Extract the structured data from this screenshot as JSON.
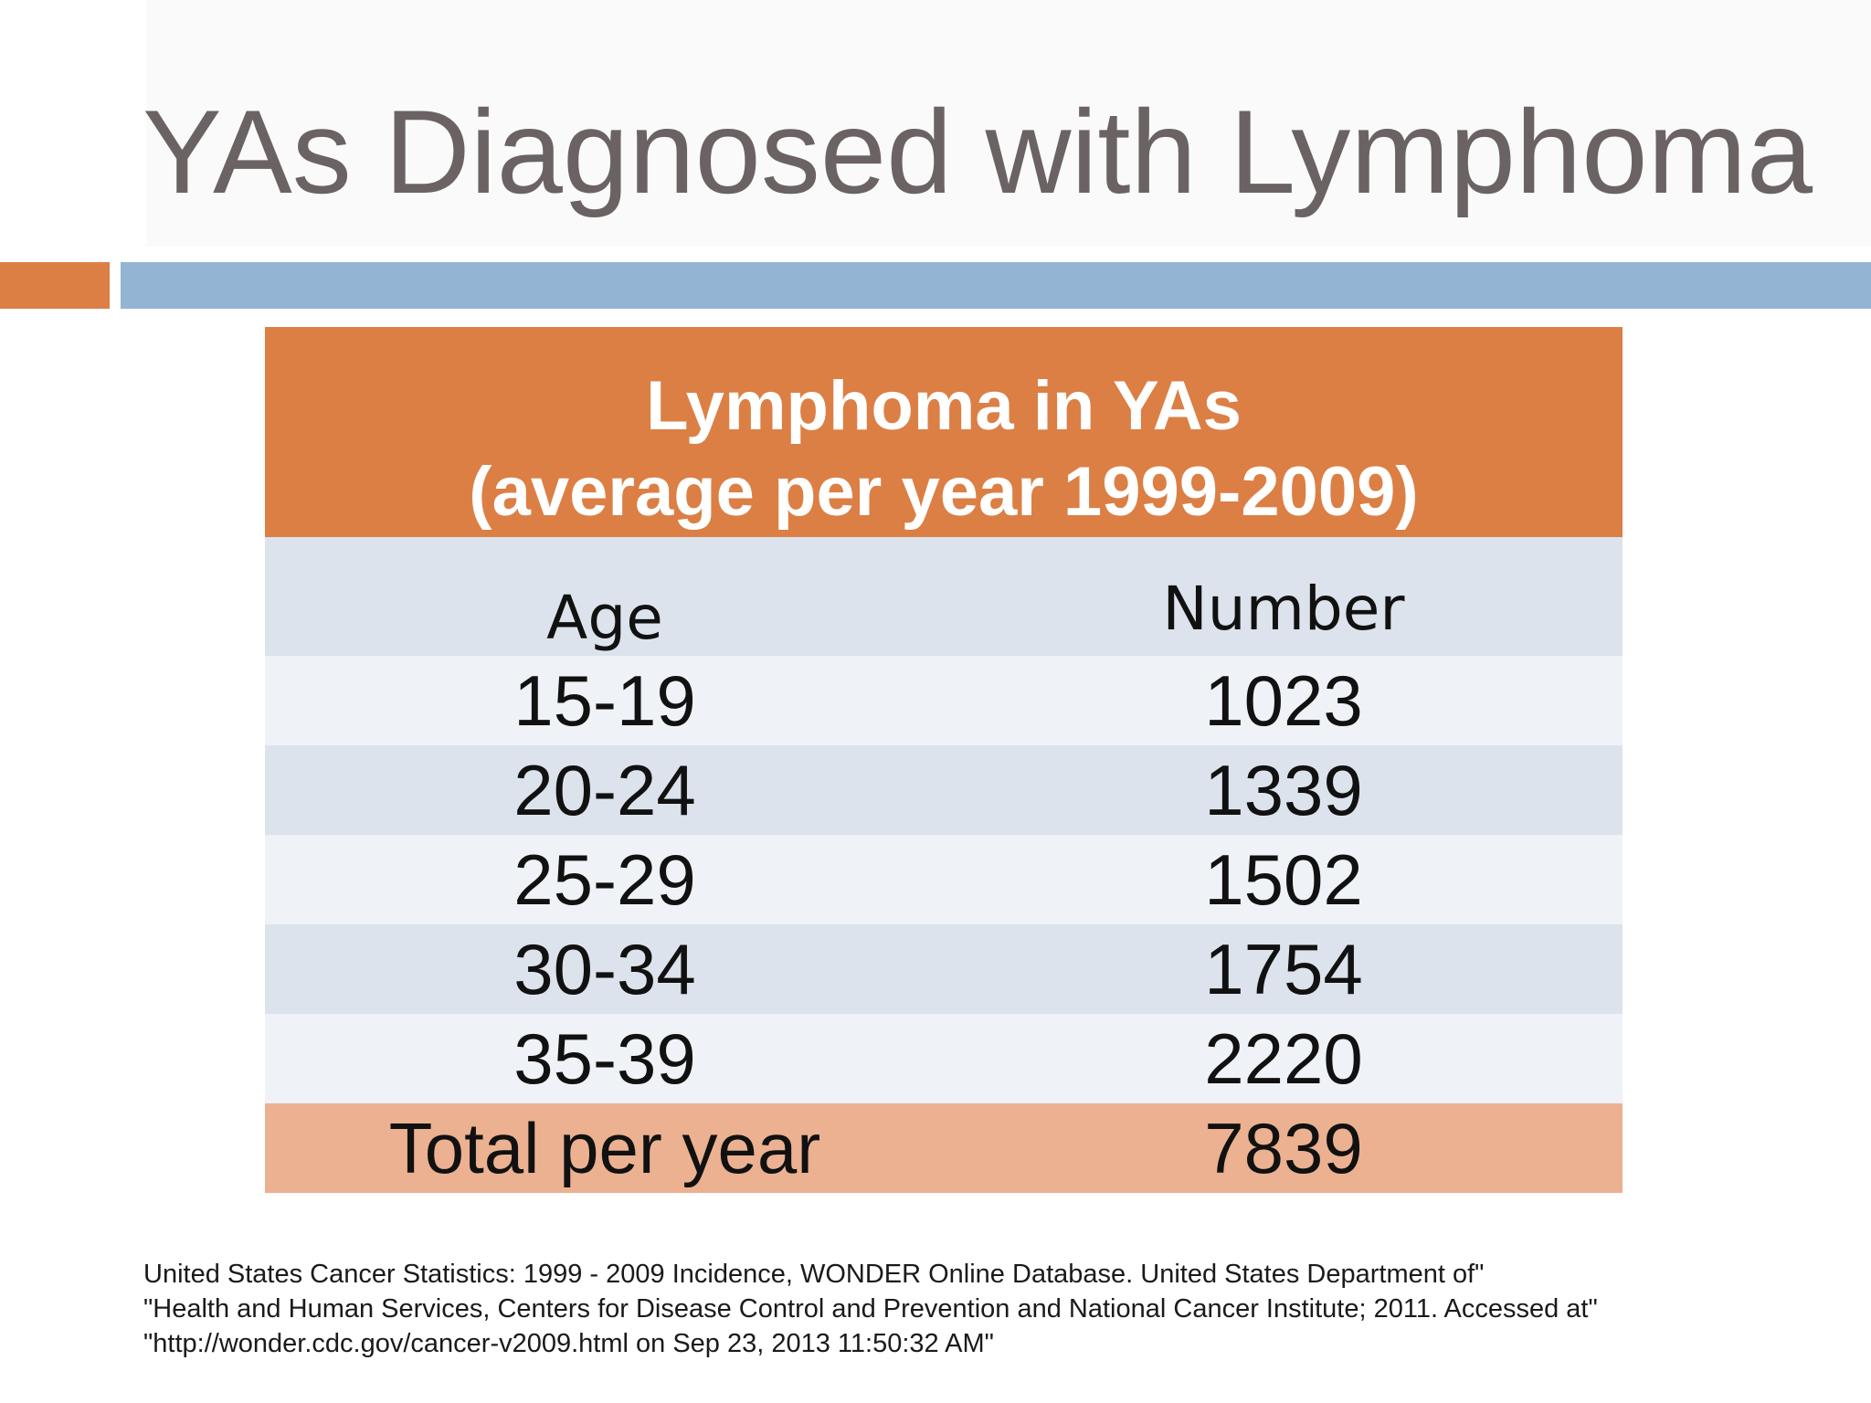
{
  "slide": {
    "title": "YAs Diagnosed with Lymphoma"
  },
  "table": {
    "header_line1": "Lymphoma in YAs",
    "header_line2": "(average per year 1999-2009)",
    "columns": [
      "Age",
      "Number"
    ],
    "rows": [
      {
        "age": "15-19",
        "number": "1023"
      },
      {
        "age": "20-24",
        "number": "1339"
      },
      {
        "age": "25-29",
        "number": "1502"
      },
      {
        "age": "30-34",
        "number": "1754"
      },
      {
        "age": "35-39",
        "number": "2220"
      }
    ],
    "total": {
      "label": "Total per year",
      "number": "7839"
    }
  },
  "citation": {
    "line1": "United States Cancer Statistics: 1999 - 2009 Incidence, WONDER Online Database. United States Department of\"",
    "line2": "\"Health and Human Services, Centers for Disease Control and Prevention and National Cancer Institute; 2011. Accessed at\"",
    "line3": "\"http://wonder.cdc.gov/cancer-v2009.html on Sep 23, 2013 11:50:32 AM\""
  },
  "colors": {
    "title_text": "#6b6363",
    "accent_orange": "#dc7f45",
    "accent_blue": "#93b4d3",
    "row_light": "#eff2f6",
    "row_dark": "#dce3ec",
    "total_row": "#ecb191"
  }
}
